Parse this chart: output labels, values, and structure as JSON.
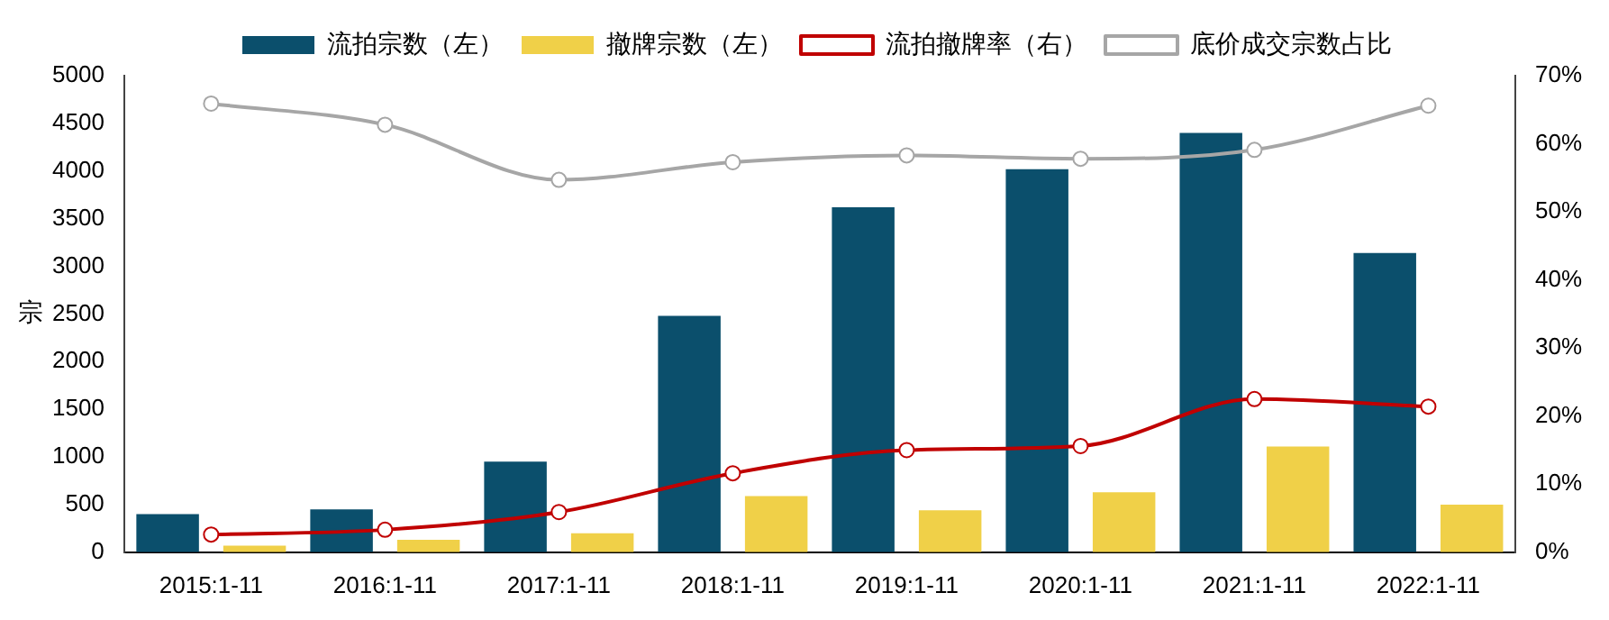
{
  "chart_data": {
    "type": "bar",
    "ylabel": "宗",
    "categories": [
      "2015:1-11",
      "2016:1-11",
      "2017:1-11",
      "2018:1-11",
      "2019:1-11",
      "2020:1-11",
      "2021:1-11",
      "2022:1-11"
    ],
    "ylim": [
      0,
      5000
    ],
    "yticks": [
      0,
      500,
      1000,
      1500,
      2000,
      2500,
      3000,
      3500,
      4000,
      4500,
      5000
    ],
    "y2lim": [
      0,
      70
    ],
    "y2ticks": [
      {
        "value": 0,
        "label": "0%"
      },
      {
        "value": 10,
        "label": "10%"
      },
      {
        "value": 20,
        "label": "20%"
      },
      {
        "value": 30,
        "label": "30%"
      },
      {
        "value": 40,
        "label": "40%"
      },
      {
        "value": 50,
        "label": "50%"
      },
      {
        "value": 60,
        "label": "60%"
      },
      {
        "value": 70,
        "label": "70%"
      }
    ],
    "grid": false,
    "legend": "top",
    "marker": "circle",
    "series": [
      {
        "name": "流拍宗数（左）",
        "color": "#0b4f6c",
        "values": [
          400,
          450,
          950,
          2480,
          3620,
          4020,
          4400,
          3140
        ]
      },
      {
        "name": "撤牌宗数（左）",
        "color": "#f0d048",
        "values": [
          70,
          130,
          200,
          590,
          440,
          630,
          1110,
          500
        ]
      },
      {
        "name": "流拍撤牌率（右）",
        "type": "line",
        "axis": "y2",
        "color": "#c00000",
        "values": [
          2.6,
          3.3,
          5.9,
          11.6,
          15.0,
          15.6,
          22.5,
          21.4
        ]
      },
      {
        "name": "底价成交宗数占比",
        "type": "line",
        "axis": "y2",
        "color": "#a6a6a6",
        "values": [
          65.9,
          62.8,
          54.7,
          57.3,
          58.3,
          57.8,
          59.1,
          65.6
        ]
      }
    ]
  }
}
